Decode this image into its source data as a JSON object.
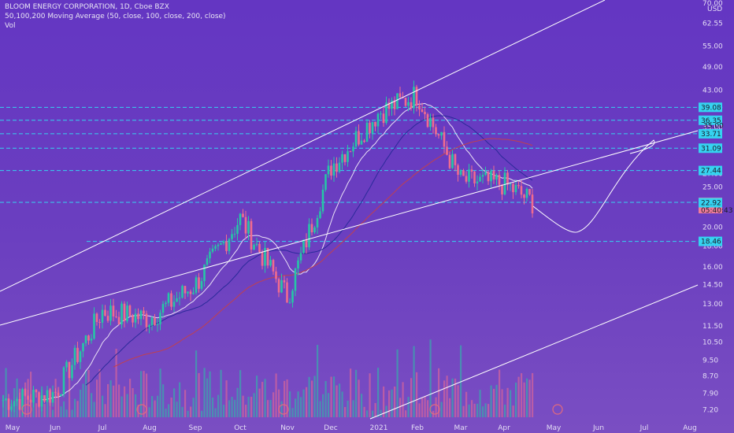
{
  "header": {
    "title": "BLOOM ENERGY CORPORATION, 1D, Cboe BZX",
    "ma_label": "50,100,200 Moving Average (50, close, 100, close, 200, close)",
    "vol_label": "Vol"
  },
  "colors": {
    "background": "#6a3fbf",
    "up": "#26c6a6",
    "down": "#f06b8f",
    "ma50": "#e9e0f5",
    "ma100": "#2b2a9a",
    "ma200": "#c0404f",
    "level_line": "#35d3f0",
    "trend_line": "#ffffff"
  },
  "chart_data": {
    "type": "candlestick",
    "y_axis_unit": "USD",
    "y_scale": "log",
    "ylim": [
      6.9,
      70
    ],
    "y_ticks": [
      "70.00",
      "62.55",
      "55.00",
      "49.00",
      "43.00",
      "39.00",
      "35.00",
      "31.00",
      "27.00",
      "25.00",
      "22.00",
      "20.00",
      "18.00",
      "16.00",
      "14.50",
      "13.00",
      "11.50",
      "10.50",
      "9.50",
      "8.70",
      "7.90",
      "7.20"
    ],
    "x_ticks": [
      "May",
      "Jun",
      "Jul",
      "Aug",
      "Sep",
      "Oct",
      "Nov",
      "Dec",
      "2021",
      "Feb",
      "Mar",
      "Apr",
      "May",
      "Jun",
      "Jul",
      "Aug"
    ],
    "level_tags": [
      {
        "label": "39.08",
        "value": 39.08
      },
      {
        "label": "36.35",
        "value": 36.35
      },
      {
        "label": "33.71",
        "value": 33.71
      },
      {
        "label": "31.09",
        "value": 31.09
      },
      {
        "label": "27.44",
        "value": 27.44
      },
      {
        "label": "18.46",
        "value": 18.46
      }
    ],
    "last_price": {
      "label": "22.97",
      "value": 22.97,
      "countdown": "05:40:43"
    },
    "lower_tag": {
      "label": "22.92",
      "value": 22.92
    },
    "line_value_tag": "35.00",
    "series_closes_key_points": [
      {
        "date": "May",
        "close": 7.6
      },
      {
        "date": "Jun",
        "close": 7.9
      },
      {
        "date": "Jul",
        "close": 12.5
      },
      {
        "date": "Aug",
        "close": 12.0
      },
      {
        "date": "Sep",
        "close": 14.5
      },
      {
        "date": "Oct",
        "close": 21.0
      },
      {
        "date": "Nov",
        "close": 13.5
      },
      {
        "date": "Dec",
        "close": 28.0
      },
      {
        "date": "2021",
        "close": 38.0
      },
      {
        "date": "Feb",
        "close": 42.0
      },
      {
        "date": "Mar",
        "close": 26.0
      },
      {
        "date": "Apr",
        "close": 25.5
      },
      {
        "date": "Apr end",
        "close": 22.97
      }
    ]
  }
}
